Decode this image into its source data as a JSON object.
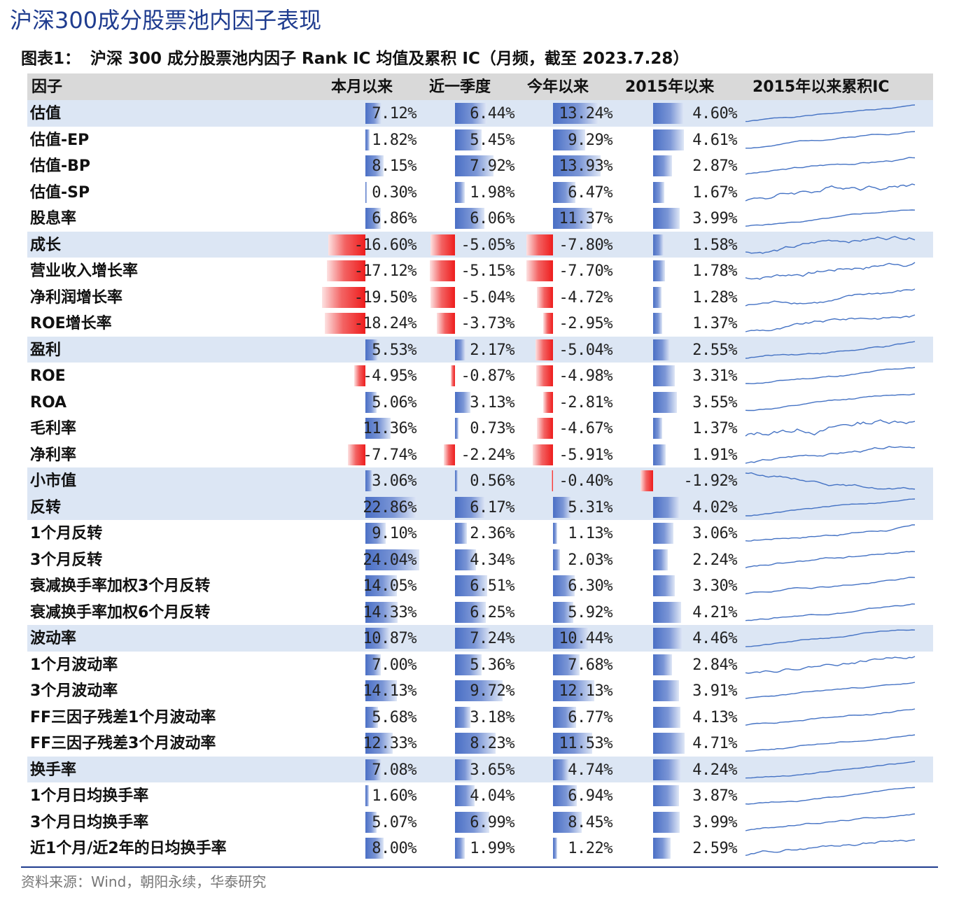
{
  "page_title": "沪深300成分股票池内因子表现",
  "figure": {
    "label": "图表1：",
    "title": "沪深 300 成分股票池内因子 Rank IC 均值及累积 IC（月频，截至 2023.7.28）"
  },
  "source": "资料来源：Wind，朝阳永续，华泰研究",
  "colors": {
    "positive_bar": "#4a6fc5",
    "negative_bar": "#ee1d1d",
    "group_row_bg": "#dce6f4",
    "header_bg": "#d9d9d9",
    "title_blue": "#1f3c8f",
    "sparkline": "#4472c4"
  },
  "chart_data": {
    "type": "table",
    "columns": [
      "因子",
      "本月以来",
      "近一季度",
      "今年以来",
      "2015年以来",
      "2015年以来累积IC"
    ],
    "value_unit": "%",
    "rows": [
      {
        "name": "估值",
        "group": true,
        "values": [
          "7.12%",
          "6.44%",
          "13.24%",
          "4.60%"
        ],
        "nums": [
          7.12,
          6.44,
          13.24,
          4.6
        ]
      },
      {
        "name": "估值-EP",
        "group": false,
        "values": [
          "1.82%",
          "5.45%",
          "9.29%",
          "4.61%"
        ],
        "nums": [
          1.82,
          5.45,
          9.29,
          4.61
        ]
      },
      {
        "name": "估值-BP",
        "group": false,
        "values": [
          "8.15%",
          "7.92%",
          "13.93%",
          "2.87%"
        ],
        "nums": [
          8.15,
          7.92,
          13.93,
          2.87
        ]
      },
      {
        "name": "估值-SP",
        "group": false,
        "values": [
          "0.30%",
          "1.98%",
          "6.47%",
          "1.67%"
        ],
        "nums": [
          0.3,
          1.98,
          6.47,
          1.67
        ]
      },
      {
        "name": "股息率",
        "group": false,
        "values": [
          "6.86%",
          "6.06%",
          "11.37%",
          "3.99%"
        ],
        "nums": [
          6.86,
          6.06,
          11.37,
          3.99
        ]
      },
      {
        "name": "成长",
        "group": true,
        "values": [
          "-16.60%",
          "-5.05%",
          "-7.80%",
          "1.58%"
        ],
        "nums": [
          -16.6,
          -5.05,
          -7.8,
          1.58
        ]
      },
      {
        "name": "营业收入增长率",
        "group": false,
        "values": [
          "-17.12%",
          "-5.15%",
          "-7.70%",
          "1.78%"
        ],
        "nums": [
          -17.12,
          -5.15,
          -7.7,
          1.78
        ]
      },
      {
        "name": "净利润增长率",
        "group": false,
        "values": [
          "-19.50%",
          "-5.04%",
          "-4.72%",
          "1.28%"
        ],
        "nums": [
          -19.5,
          -5.04,
          -4.72,
          1.28
        ]
      },
      {
        "name": "ROE增长率",
        "group": false,
        "values": [
          "-18.24%",
          "-3.73%",
          "-2.95%",
          "1.37%"
        ],
        "nums": [
          -18.24,
          -3.73,
          -2.95,
          1.37
        ]
      },
      {
        "name": "盈利",
        "group": true,
        "values": [
          "5.53%",
          "2.17%",
          "-5.04%",
          "2.55%"
        ],
        "nums": [
          5.53,
          2.17,
          -5.04,
          2.55
        ]
      },
      {
        "name": "ROE",
        "group": false,
        "values": [
          "-4.95%",
          "-0.87%",
          "-4.98%",
          "3.31%"
        ],
        "nums": [
          -4.95,
          -0.87,
          -4.98,
          3.31
        ]
      },
      {
        "name": "ROA",
        "group": false,
        "values": [
          "5.06%",
          "3.13%",
          "-2.81%",
          "3.55%"
        ],
        "nums": [
          5.06,
          3.13,
          -2.81,
          3.55
        ]
      },
      {
        "name": "毛利率",
        "group": false,
        "values": [
          "11.36%",
          "0.73%",
          "-4.67%",
          "1.37%"
        ],
        "nums": [
          11.36,
          0.73,
          -4.67,
          1.37
        ]
      },
      {
        "name": "净利率",
        "group": false,
        "values": [
          "-7.74%",
          "-2.24%",
          "-5.91%",
          "1.91%"
        ],
        "nums": [
          -7.74,
          -2.24,
          -5.91,
          1.91
        ]
      },
      {
        "name": "小市值",
        "group": true,
        "values": [
          "3.06%",
          "0.56%",
          "-0.40%",
          "-1.92%"
        ],
        "nums": [
          3.06,
          0.56,
          -0.4,
          -1.92
        ]
      },
      {
        "name": "反转",
        "group": true,
        "values": [
          "22.86%",
          "6.17%",
          "5.31%",
          "4.02%"
        ],
        "nums": [
          22.86,
          6.17,
          5.31,
          4.02
        ]
      },
      {
        "name": "1个月反转",
        "group": false,
        "values": [
          "9.10%",
          "2.36%",
          "1.13%",
          "3.06%"
        ],
        "nums": [
          9.1,
          2.36,
          1.13,
          3.06
        ]
      },
      {
        "name": "3个月反转",
        "group": false,
        "values": [
          "24.04%",
          "4.34%",
          "2.03%",
          "2.24%"
        ],
        "nums": [
          24.04,
          4.34,
          2.03,
          2.24
        ]
      },
      {
        "name": "衰减换手率加权3个月反转",
        "group": false,
        "values": [
          "14.05%",
          "6.51%",
          "6.30%",
          "3.30%"
        ],
        "nums": [
          14.05,
          6.51,
          6.3,
          3.3
        ]
      },
      {
        "name": "衰减换手率加权6个月反转",
        "group": false,
        "values": [
          "14.33%",
          "6.25%",
          "5.92%",
          "4.21%"
        ],
        "nums": [
          14.33,
          6.25,
          5.92,
          4.21
        ]
      },
      {
        "name": "波动率",
        "group": true,
        "values": [
          "10.87%",
          "7.24%",
          "10.44%",
          "4.46%"
        ],
        "nums": [
          10.87,
          7.24,
          10.44,
          4.46
        ]
      },
      {
        "name": "1个月波动率",
        "group": false,
        "values": [
          "7.00%",
          "5.36%",
          "7.68%",
          "2.84%"
        ],
        "nums": [
          7.0,
          5.36,
          7.68,
          2.84
        ]
      },
      {
        "name": "3个月波动率",
        "group": false,
        "values": [
          "14.13%",
          "9.72%",
          "12.13%",
          "3.91%"
        ],
        "nums": [
          14.13,
          9.72,
          12.13,
          3.91
        ]
      },
      {
        "name": "FF三因子残差1个月波动率",
        "group": false,
        "values": [
          "5.68%",
          "3.18%",
          "6.77%",
          "4.13%"
        ],
        "nums": [
          5.68,
          3.18,
          6.77,
          4.13
        ]
      },
      {
        "name": "FF三因子残差3个月波动率",
        "group": false,
        "values": [
          "12.33%",
          "8.23%",
          "11.53%",
          "4.71%"
        ],
        "nums": [
          12.33,
          8.23,
          11.53,
          4.71
        ]
      },
      {
        "name": "换手率",
        "group": true,
        "values": [
          "7.08%",
          "3.65%",
          "4.74%",
          "4.24%"
        ],
        "nums": [
          7.08,
          3.65,
          4.74,
          4.24
        ]
      },
      {
        "name": "1个月日均换手率",
        "group": false,
        "values": [
          "1.60%",
          "4.04%",
          "6.94%",
          "3.87%"
        ],
        "nums": [
          1.6,
          4.04,
          6.94,
          3.87
        ]
      },
      {
        "name": "3个月日均换手率",
        "group": false,
        "values": [
          "5.07%",
          "6.99%",
          "8.45%",
          "3.99%"
        ],
        "nums": [
          5.07,
          6.99,
          8.45,
          3.99
        ]
      },
      {
        "name": "近1个月/近2年的日均换手率",
        "group": false,
        "values": [
          "8.00%",
          "1.99%",
          "1.22%",
          "2.59%"
        ],
        "nums": [
          8.0,
          1.99,
          1.22,
          2.59
        ]
      }
    ]
  }
}
